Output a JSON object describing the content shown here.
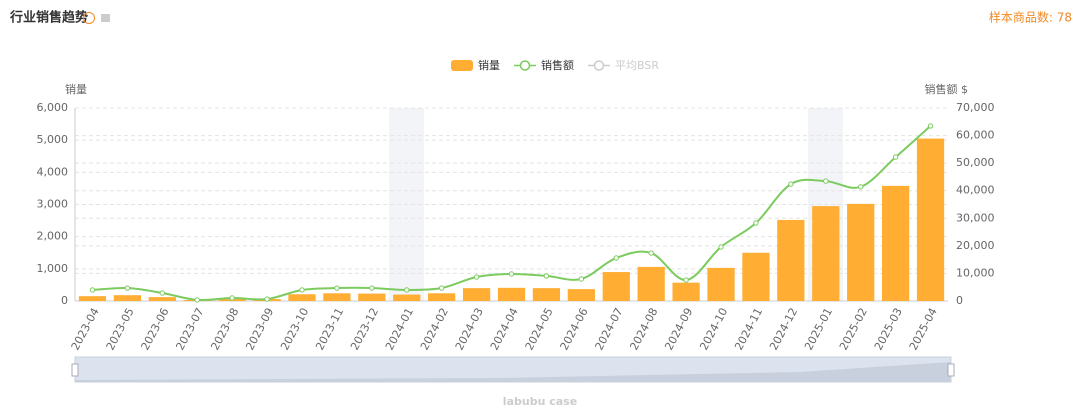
{
  "chart_data": {
    "type": "bar-line",
    "title": "行业销售趋势",
    "sample_count_label": "样本商品数: 78",
    "y_label": "销量",
    "y2_label": "销售额 $",
    "footer": "labubu case",
    "categories": [
      "2023-04",
      "2023-05",
      "2023-06",
      "2023-07",
      "2023-08",
      "2023-09",
      "2023-10",
      "2023-11",
      "2023-12",
      "2024-01",
      "2024-02",
      "2024-03",
      "2024-04",
      "2024-05",
      "2024-06",
      "2024-07",
      "2024-08",
      "2024-09",
      "2024-10",
      "2024-11",
      "2024-12",
      "2025-01",
      "2025-02",
      "2025-03",
      "2025-04"
    ],
    "series": [
      {
        "name": "销量",
        "color": "#ffad33",
        "kind": "bar",
        "values": [
          150,
          180,
          120,
          30,
          60,
          60,
          210,
          240,
          230,
          200,
          240,
          400,
          410,
          400,
          370,
          900,
          1060,
          570,
          1030,
          1500,
          2520,
          2950,
          3020,
          3580,
          5050
        ]
      },
      {
        "name": "销售额",
        "color": "#7ccb5e",
        "kind": "line",
        "axis": "y2",
        "values": [
          4000,
          4700,
          2900,
          400,
          1100,
          700,
          4000,
          4700,
          4700,
          4000,
          4700,
          8700,
          9800,
          9100,
          8000,
          15600,
          17400,
          7600,
          19600,
          28300,
          42400,
          43500,
          41400,
          52200,
          63500
        ]
      },
      {
        "name": "平均BSR",
        "color": "#cccccc",
        "kind": "line",
        "visible": false
      }
    ],
    "ylim": [
      0,
      6000
    ],
    "yticks": [
      0,
      {
        "value": 1000,
        "label": "1,000"
      },
      {
        "value": 2000,
        "label": "2,000"
      },
      {
        "value": 3000,
        "label": "3,000"
      },
      {
        "value": 4000,
        "label": "4,000"
      },
      {
        "value": 5000,
        "label": "5,000"
      },
      {
        "value": 6000,
        "label": "6,000"
      }
    ],
    "y2lim": [
      0,
      70000
    ],
    "y2ticks": [
      0,
      {
        "value": 10000,
        "label": "10,000"
      },
      {
        "value": 20000,
        "label": "20,000"
      },
      {
        "value": 30000,
        "label": "30,000"
      },
      {
        "value": 40000,
        "label": "40,000"
      },
      {
        "value": 50000,
        "label": "50,000"
      },
      {
        "value": 60000,
        "label": "60,000"
      },
      {
        "value": 70000,
        "label": "70,000"
      }
    ],
    "grid": true
  }
}
